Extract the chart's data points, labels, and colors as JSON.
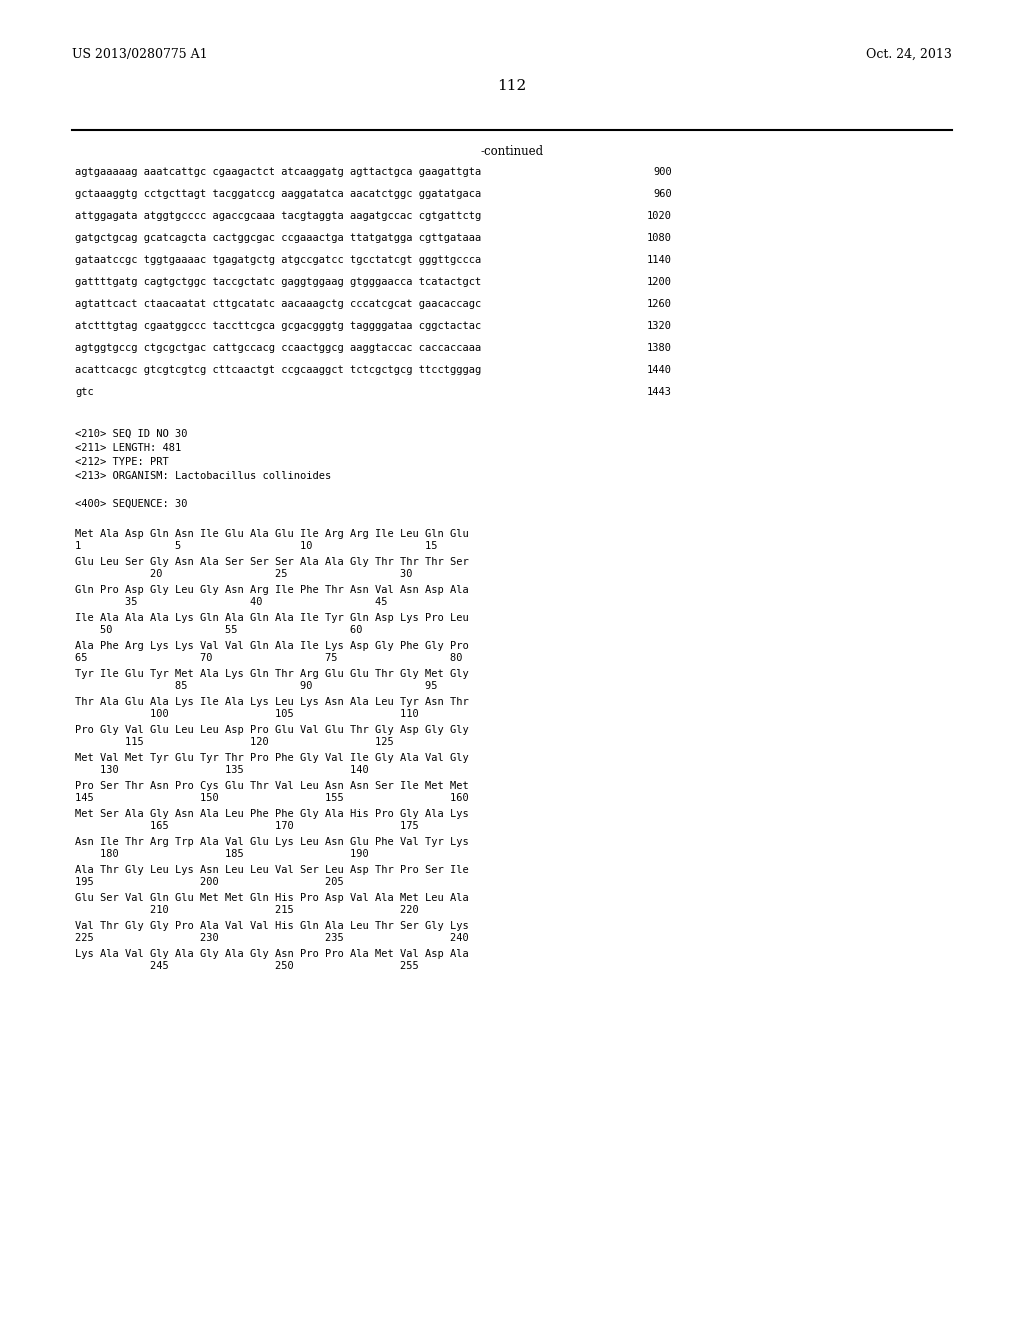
{
  "patent_number": "US 2013/0280775 A1",
  "date": "Oct. 24, 2013",
  "page_number": "112",
  "continued_label": "-continued",
  "background_color": "#ffffff",
  "text_color": "#000000",
  "sequence_lines": [
    [
      "agtgaaaaag aaatcattgc cgaagactct atcaaggatg agttactgca gaagattgta",
      "900"
    ],
    [
      "gctaaaggtg cctgcttagt tacggatccg aaggatatca aacatctggc ggatatgaca",
      "960"
    ],
    [
      "attggagata atggtgcccc agaccgcaaa tacgtaggta aagatgccac cgtgattctg",
      "1020"
    ],
    [
      "gatgctgcag gcatcagcta cactggcgac ccgaaactga ttatgatgga cgttgataaa",
      "1080"
    ],
    [
      "gataatccgc tggtgaaaac tgagatgctg atgccgatcc tgcctatcgt gggttgccca",
      "1140"
    ],
    [
      "gattttgatg cagtgctggc taccgctatc gaggtggaag gtgggaacca tcatactgct",
      "1200"
    ],
    [
      "agtattcact ctaacaatat cttgcatatc aacaaagctg cccatcgcat gaacaccagc",
      "1260"
    ],
    [
      "atctttgtag cgaatggccc taccttcgca gcgacgggtg taggggataa cggctactac",
      "1320"
    ],
    [
      "agtggtgccg ctgcgctgac cattgccacg ccaactggcg aaggtaccac caccaccaaa",
      "1380"
    ],
    [
      "acattcacgc gtcgtcgtcg cttcaactgt ccgcaaggct tctcgctgcg ttcctgggag",
      "1440"
    ],
    [
      "gtc",
      "1443"
    ]
  ],
  "metadata_lines": [
    "<210> SEQ ID NO 30",
    "<211> LENGTH: 481",
    "<212> TYPE: PRT",
    "<213> ORGANISM: Lactobacillus collinoides",
    "",
    "<400> SEQUENCE: 30"
  ],
  "protein_blocks": [
    {
      "seq": "Met Ala Asp Gln Asn Ile Glu Ala Glu Ile Arg Arg Ile Leu Gln Glu",
      "num": "1               5                   10                  15"
    },
    {
      "seq": "Glu Leu Ser Gly Asn Ala Ser Ser Ser Ala Ala Gly Thr Thr Thr Ser",
      "num": "            20                  25                  30"
    },
    {
      "seq": "Gln Pro Asp Gly Leu Gly Asn Arg Ile Phe Thr Asn Val Asn Asp Ala",
      "num": "        35                  40                  45"
    },
    {
      "seq": "Ile Ala Ala Ala Lys Gln Ala Gln Ala Ile Tyr Gln Asp Lys Pro Leu",
      "num": "    50                  55                  60"
    },
    {
      "seq": "Ala Phe Arg Lys Lys Val Val Gln Ala Ile Lys Asp Gly Phe Gly Pro",
      "num": "65                  70                  75                  80"
    },
    {
      "seq": "Tyr Ile Glu Tyr Met Ala Lys Gln Thr Arg Glu Glu Thr Gly Met Gly",
      "num": "                85                  90                  95"
    },
    {
      "seq": "Thr Ala Glu Ala Lys Ile Ala Lys Leu Lys Asn Ala Leu Tyr Asn Thr",
      "num": "            100                 105                 110"
    },
    {
      "seq": "Pro Gly Val Glu Leu Leu Asp Pro Glu Val Glu Thr Gly Asp Gly Gly",
      "num": "        115                 120                 125"
    },
    {
      "seq": "Met Val Met Tyr Glu Tyr Thr Pro Phe Gly Val Ile Gly Ala Val Gly",
      "num": "    130                 135                 140"
    },
    {
      "seq": "Pro Ser Thr Asn Pro Cys Glu Thr Val Leu Asn Asn Ser Ile Met Met",
      "num": "145                 150                 155                 160"
    },
    {
      "seq": "Met Ser Ala Gly Asn Ala Leu Phe Phe Gly Ala His Pro Gly Ala Lys",
      "num": "            165                 170                 175"
    },
    {
      "seq": "Asn Ile Thr Arg Trp Ala Val Glu Lys Leu Asn Glu Phe Val Tyr Lys",
      "num": "    180                 185                 190"
    },
    {
      "seq": "Ala Thr Gly Leu Lys Asn Leu Leu Val Ser Leu Asp Thr Pro Ser Ile",
      "num": "195                 200                 205"
    },
    {
      "seq": "Glu Ser Val Gln Glu Met Met Gln His Pro Asp Val Ala Met Leu Ala",
      "num": "            210                 215                 220"
    },
    {
      "seq": "Val Thr Gly Gly Pro Ala Val Val His Gln Ala Leu Thr Ser Gly Lys",
      "num": "225                 230                 235                 240"
    },
    {
      "seq": "Lys Ala Val Gly Ala Gly Ala Gly Asn Pro Pro Ala Met Val Asp Ala",
      "num": "            245                 250                 255"
    }
  ]
}
